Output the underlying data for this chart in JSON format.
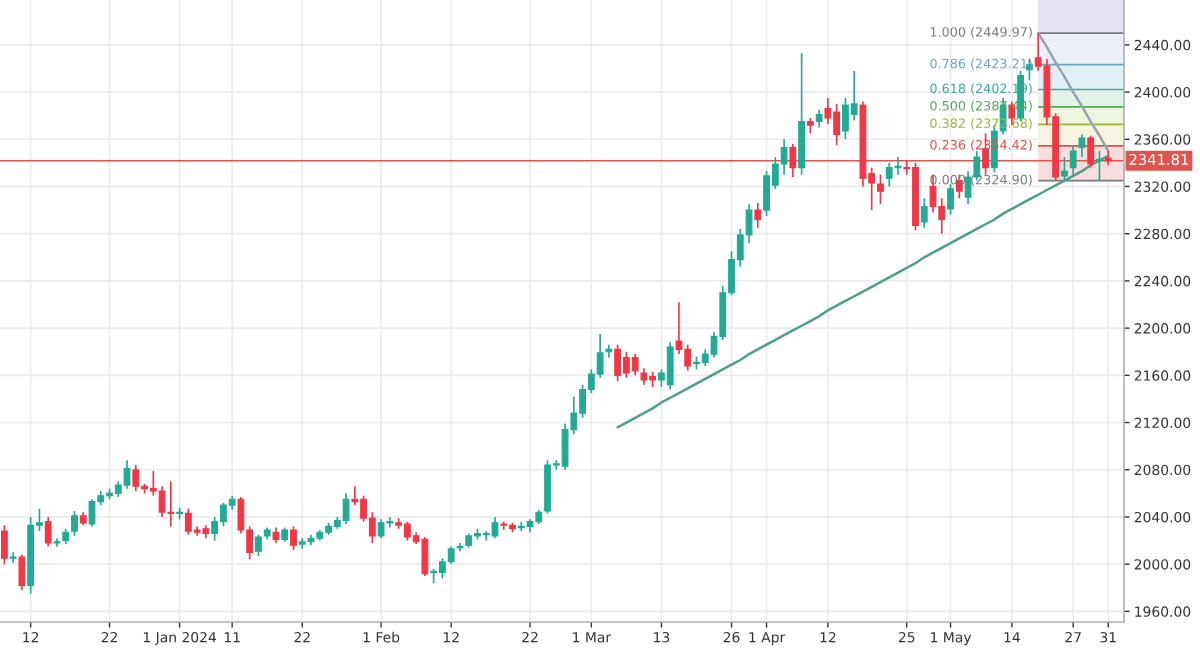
{
  "chart_data": {
    "type": "candlestick",
    "categories": [
      null,
      null,
      null,
      "12",
      null,
      null,
      null,
      null,
      null,
      null,
      null,
      null,
      "22",
      null,
      null,
      null,
      null,
      null,
      null,
      null,
      "1 Jan 2024",
      null,
      null,
      null,
      null,
      null,
      "11",
      null,
      null,
      null,
      null,
      null,
      null,
      null,
      "22",
      null,
      null,
      null,
      null,
      null,
      null,
      null,
      null,
      "1 Feb",
      null,
      null,
      null,
      null,
      null,
      null,
      null,
      "12",
      null,
      null,
      null,
      null,
      null,
      null,
      null,
      null,
      "22",
      null,
      null,
      null,
      null,
      null,
      null,
      "1 Mar",
      null,
      null,
      null,
      null,
      null,
      null,
      null,
      "13",
      null,
      null,
      null,
      null,
      null,
      null,
      null,
      "26",
      null,
      null,
      null,
      "1 Apr",
      null,
      null,
      null,
      null,
      null,
      null,
      "12",
      null,
      null,
      null,
      null,
      null,
      null,
      null,
      null,
      "25",
      null,
      null,
      null,
      null,
      "1 May",
      null,
      null,
      null,
      null,
      null,
      null,
      "14",
      null,
      null,
      null,
      null,
      null,
      null,
      "27",
      null,
      null,
      null,
      "31"
    ],
    "ohlc": [
      [
        2028,
        2033,
        2000,
        2005
      ],
      [
        2005,
        2010,
        2001,
        2006
      ],
      [
        2006,
        2008,
        1978,
        1982
      ],
      [
        1982,
        2040,
        1975,
        2033
      ],
      [
        2033,
        2047,
        2028,
        2035
      ],
      [
        2036,
        2040,
        2015,
        2018
      ],
      [
        2018,
        2022,
        2015,
        2019
      ],
      [
        2020,
        2030,
        2017,
        2027
      ],
      [
        2028,
        2045,
        2024,
        2041
      ],
      [
        2041,
        2044,
        2033,
        2035
      ],
      [
        2034,
        2055,
        2032,
        2053
      ],
      [
        2053,
        2062,
        2050,
        2058
      ],
      [
        2058,
        2064,
        2055,
        2060
      ],
      [
        2060,
        2070,
        2057,
        2067
      ],
      [
        2067,
        2088,
        2064,
        2081
      ],
      [
        2080,
        2084,
        2062,
        2066
      ],
      [
        2066,
        2068,
        2060,
        2064
      ],
      [
        2064,
        2079,
        2058,
        2062
      ],
      [
        2062,
        2066,
        2040,
        2044
      ],
      [
        2044,
        2070,
        2032,
        2043
      ],
      [
        2043,
        2048,
        2038,
        2044
      ],
      [
        2043,
        2047,
        2025,
        2028
      ],
      [
        2029,
        2032,
        2024,
        2027
      ],
      [
        2030,
        2033,
        2022,
        2026
      ],
      [
        2026,
        2040,
        2020,
        2036
      ],
      [
        2036,
        2052,
        2032,
        2050
      ],
      [
        2050,
        2058,
        2046,
        2055
      ],
      [
        2055,
        2057,
        2026,
        2029
      ],
      [
        2029,
        2032,
        2004,
        2010
      ],
      [
        2011,
        2025,
        2007,
        2023
      ],
      [
        2024,
        2031,
        2021,
        2029
      ],
      [
        2027,
        2031,
        2018,
        2021
      ],
      [
        2021,
        2031,
        2019,
        2029
      ],
      [
        2029,
        2032,
        2012,
        2016
      ],
      [
        2017,
        2022,
        2013,
        2019
      ],
      [
        2019,
        2025,
        2016,
        2022
      ],
      [
        2022,
        2029,
        2020,
        2027
      ],
      [
        2027,
        2035,
        2025,
        2032
      ],
      [
        2032,
        2040,
        2030,
        2037
      ],
      [
        2037,
        2060,
        2034,
        2055
      ],
      [
        2055,
        2066,
        2050,
        2053
      ],
      [
        2055,
        2058,
        2036,
        2039
      ],
      [
        2039,
        2044,
        2018,
        2024
      ],
      [
        2024,
        2038,
        2022,
        2035
      ],
      [
        2035,
        2040,
        2031,
        2036
      ],
      [
        2035,
        2039,
        2030,
        2033
      ],
      [
        2034,
        2036,
        2020,
        2023
      ],
      [
        2024,
        2027,
        2017,
        2019
      ],
      [
        2021,
        2023,
        1990,
        1992
      ],
      [
        1993,
        1996,
        1984,
        1994
      ],
      [
        1993,
        2005,
        1988,
        2002
      ],
      [
        2002,
        2015,
        2000,
        2013
      ],
      [
        2014,
        2018,
        2011,
        2015
      ],
      [
        2016,
        2026,
        2014,
        2024
      ],
      [
        2024,
        2030,
        2021,
        2026
      ],
      [
        2025,
        2028,
        2020,
        2026
      ],
      [
        2024,
        2040,
        2022,
        2035
      ],
      [
        2034,
        2036,
        2029,
        2033
      ],
      [
        2033,
        2035,
        2027,
        2030
      ],
      [
        2031,
        2036,
        2028,
        2032
      ],
      [
        2032,
        2038,
        2027,
        2036
      ],
      [
        2036,
        2046,
        2034,
        2044
      ],
      [
        2045,
        2088,
        2043,
        2084
      ],
      [
        2084,
        2088,
        2080,
        2085
      ],
      [
        2083,
        2119,
        2080,
        2114
      ],
      [
        2114,
        2142,
        2110,
        2128
      ],
      [
        2128,
        2152,
        2124,
        2148
      ],
      [
        2148,
        2165,
        2145,
        2161
      ],
      [
        2161,
        2195,
        2158,
        2179
      ],
      [
        2180,
        2186,
        2175,
        2182
      ],
      [
        2182,
        2186,
        2155,
        2160
      ],
      [
        2175,
        2180,
        2158,
        2162
      ],
      [
        2175,
        2178,
        2160,
        2164
      ],
      [
        2162,
        2166,
        2152,
        2156
      ],
      [
        2159,
        2163,
        2150,
        2156
      ],
      [
        2156,
        2165,
        2150,
        2162
      ],
      [
        2152,
        2188,
        2148,
        2184
      ],
      [
        2189,
        2222,
        2178,
        2182
      ],
      [
        2182,
        2186,
        2164,
        2168
      ],
      [
        2170,
        2176,
        2165,
        2171
      ],
      [
        2171,
        2182,
        2168,
        2178
      ],
      [
        2178,
        2197,
        2175,
        2193
      ],
      [
        2193,
        2236,
        2190,
        2230
      ],
      [
        2230,
        2265,
        2228,
        2258
      ],
      [
        2258,
        2284,
        2252,
        2279
      ],
      [
        2279,
        2305,
        2272,
        2300
      ],
      [
        2300,
        2306,
        2285,
        2292
      ],
      [
        2300,
        2333,
        2295,
        2329
      ],
      [
        2321,
        2345,
        2318,
        2339
      ],
      [
        2339,
        2360,
        2330,
        2353
      ],
      [
        2353,
        2356,
        2328,
        2336
      ],
      [
        2336,
        2433,
        2330,
        2375
      ],
      [
        2375,
        2378,
        2365,
        2372
      ],
      [
        2375,
        2385,
        2370,
        2381
      ],
      [
        2386,
        2395,
        2373,
        2378
      ],
      [
        2383,
        2390,
        2355,
        2364
      ],
      [
        2367,
        2395,
        2360,
        2389
      ],
      [
        2381,
        2418,
        2376,
        2390
      ],
      [
        2389,
        2392,
        2320,
        2327
      ],
      [
        2331,
        2336,
        2300,
        2323
      ],
      [
        2322,
        2330,
        2305,
        2316
      ],
      [
        2327,
        2340,
        2320,
        2336
      ],
      [
        2336,
        2345,
        2330,
        2337
      ],
      [
        2336,
        2342,
        2330,
        2335
      ],
      [
        2336,
        2340,
        2283,
        2287
      ],
      [
        2290,
        2310,
        2285,
        2303
      ],
      [
        2320,
        2330,
        2298,
        2303
      ],
      [
        2303,
        2310,
        2280,
        2292
      ],
      [
        2301,
        2322,
        2296,
        2318
      ],
      [
        2325,
        2330,
        2310,
        2316
      ],
      [
        2311,
        2333,
        2305,
        2328
      ],
      [
        2328,
        2350,
        2325,
        2345
      ],
      [
        2352,
        2365,
        2330,
        2336
      ],
      [
        2336,
        2372,
        2332,
        2367
      ],
      [
        2367,
        2395,
        2364,
        2389
      ],
      [
        2389,
        2392,
        2372,
        2378
      ],
      [
        2378,
        2418,
        2375,
        2414
      ],
      [
        2419,
        2428,
        2410,
        2423
      ],
      [
        2429,
        2449.97,
        2418,
        2422
      ],
      [
        2422,
        2428,
        2372,
        2379
      ],
      [
        2379,
        2382,
        2325,
        2328
      ],
      [
        2329,
        2345,
        2325,
        2333
      ],
      [
        2336,
        2355,
        2330,
        2350
      ],
      [
        2353,
        2364,
        2345,
        2361
      ],
      [
        2361,
        2363,
        2336,
        2339
      ],
      [
        2342,
        2350,
        2325,
        2343
      ],
      [
        2344,
        2350,
        2338,
        2341.81
      ]
    ],
    "colors": [
      "#f23645",
      "#22ab94",
      "#f23645",
      "#22ab94",
      "#22ab94",
      "#f23645",
      "#22ab94",
      "#22ab94",
      "#22ab94",
      "#f23645",
      "#22ab94",
      "#22ab94",
      "#22ab94",
      "#22ab94",
      "#22ab94",
      "#f23645",
      "#f23645",
      "#f23645",
      "#f23645",
      "#f23645",
      "#22ab94",
      "#f23645",
      "#f23645",
      "#f23645",
      "#22ab94",
      "#22ab94",
      "#22ab94",
      "#f23645",
      "#f23645",
      "#22ab94",
      "#22ab94",
      "#f23645",
      "#22ab94",
      "#f23645",
      "#22ab94",
      "#22ab94",
      "#22ab94",
      "#22ab94",
      "#22ab94",
      "#22ab94",
      "#f23645",
      "#f23645",
      "#f23645",
      "#22ab94",
      "#22ab94",
      "#f23645",
      "#f23645",
      "#f23645",
      "#f23645",
      "#22ab94",
      "#22ab94",
      "#22ab94",
      "#22ab94",
      "#22ab94",
      "#22ab94",
      "#22ab94",
      "#22ab94",
      "#f23645",
      "#f23645",
      "#22ab94",
      "#22ab94",
      "#22ab94",
      "#22ab94",
      "#22ab94",
      "#22ab94",
      "#22ab94",
      "#22ab94",
      "#22ab94",
      "#22ab94",
      "#22ab94",
      "#f23645",
      "#f23645",
      "#f23645",
      "#f23645",
      "#f23645",
      "#22ab94",
      "#22ab94",
      "#f23645",
      "#f23645",
      "#22ab94",
      "#22ab94",
      "#22ab94",
      "#22ab94",
      "#22ab94",
      "#22ab94",
      "#22ab94",
      "#f23645",
      "#22ab94",
      "#22ab94",
      "#22ab94",
      "#f23645",
      "#22ab94",
      "#f23645",
      "#22ab94",
      "#f23645",
      "#f23645",
      "#22ab94",
      "#22ab94",
      "#f23645",
      "#f23645",
      "#f23645",
      "#22ab94",
      "#22ab94",
      "#f23645",
      "#f23645",
      "#22ab94",
      "#f23645",
      "#f23645",
      "#22ab94",
      "#f23645",
      "#22ab94",
      "#22ab94",
      "#f23645",
      "#22ab94",
      "#22ab94",
      "#f23645",
      "#22ab94",
      "#22ab94",
      "#f23645",
      "#f23645",
      "#f23645",
      "#22ab94",
      "#22ab94",
      "#22ab94",
      "#f23645",
      "#22ab94",
      "#f23645"
    ],
    "series": [
      {
        "type": "line",
        "color": "#4f9e8e",
        "values": [
          null,
          null,
          null,
          null,
          null,
          null,
          null,
          null,
          null,
          null,
          null,
          null,
          null,
          null,
          null,
          null,
          null,
          null,
          null,
          null,
          null,
          null,
          null,
          null,
          null,
          null,
          null,
          null,
          null,
          null,
          null,
          null,
          null,
          null,
          null,
          null,
          null,
          null,
          null,
          null,
          null,
          null,
          null,
          null,
          null,
          null,
          null,
          null,
          null,
          null,
          null,
          null,
          null,
          null,
          null,
          null,
          null,
          null,
          null,
          null,
          null,
          null,
          null,
          null,
          null,
          null,
          null,
          null,
          null,
          null,
          2116,
          2120,
          2124,
          2128,
          2132,
          2137,
          2141,
          2145,
          2149,
          2153,
          2157,
          2161,
          2165,
          2169,
          2173,
          2178,
          2182,
          2186,
          2190,
          2194,
          2198,
          2202,
          2206,
          2210,
          2215,
          2219,
          2223,
          2227,
          2231,
          2235,
          2239,
          2243,
          2247,
          2251,
          2255,
          2260,
          2264,
          2268,
          2272,
          2276,
          2280,
          2284,
          2288,
          2292,
          2297,
          2301,
          2305,
          2309,
          2313,
          2317,
          2321,
          2325,
          2329,
          2333,
          2338,
          2342,
          2346
        ]
      },
      {
        "type": "line",
        "color": "#9aa0b0",
        "values": [
          null,
          null,
          null,
          null,
          null,
          null,
          null,
          null,
          null,
          null,
          null,
          null,
          null,
          null,
          null,
          null,
          null,
          null,
          null,
          null,
          null,
          null,
          null,
          null,
          null,
          null,
          null,
          null,
          null,
          null,
          null,
          null,
          null,
          null,
          null,
          null,
          null,
          null,
          null,
          null,
          null,
          null,
          null,
          null,
          null,
          null,
          null,
          null,
          null,
          null,
          null,
          null,
          null,
          null,
          null,
          null,
          null,
          null,
          null,
          null,
          null,
          null,
          null,
          null,
          null,
          null,
          null,
          null,
          null,
          null,
          null,
          null,
          null,
          null,
          null,
          null,
          null,
          null,
          null,
          null,
          null,
          null,
          null,
          null,
          null,
          null,
          null,
          null,
          null,
          null,
          null,
          null,
          null,
          null,
          null,
          null,
          null,
          null,
          null,
          null,
          null,
          null,
          null,
          null,
          null,
          null,
          null,
          null,
          null,
          null,
          null,
          null,
          null,
          null,
          null,
          null,
          null,
          null,
          2450,
          2438,
          2425,
          2413,
          2400,
          2388,
          2375,
          2363,
          2350
        ]
      }
    ],
    "ref_lines": [
      {
        "axis": "y",
        "value": 2341.81,
        "label": "2341.81",
        "color": "#e0544f"
      },
      {
        "axis": "y",
        "value": 2449.97,
        "label": "1.000 (2449.97)",
        "color": "#787b86"
      },
      {
        "axis": "y",
        "value": 2423.21,
        "label": "0.786 (2423.21)",
        "color": "#64a7c6"
      },
      {
        "axis": "y",
        "value": 2402.19,
        "label": "0.618 (2402.19)",
        "color": "#3fa89a"
      },
      {
        "axis": "y",
        "value": 2387.44,
        "label": "0.500 (2387.44)",
        "color": "#4caf50"
      },
      {
        "axis": "y",
        "value": 2372.68,
        "label": "0.382 (2372.68)",
        "color": "#9bb53a"
      },
      {
        "axis": "y",
        "value": 2354.42,
        "label": "0.236 (2354.42)",
        "color": "#e05050"
      },
      {
        "axis": "y",
        "value": 2324.9,
        "label": "0.000 (2324.90)",
        "color": "#787b86"
      }
    ],
    "bands": [
      {
        "axis": "y",
        "from": 2449.97,
        "to": 2478,
        "color": "#e4e3f6"
      },
      {
        "axis": "y",
        "from": 2423.21,
        "to": 2449.97,
        "color": "#eceff5"
      },
      {
        "axis": "y",
        "from": 2402.19,
        "to": 2423.21,
        "color": "#e1f0f5"
      },
      {
        "axis": "y",
        "from": 2387.44,
        "to": 2402.19,
        "color": "#e2f2ea"
      },
      {
        "axis": "y",
        "from": 2372.68,
        "to": 2387.44,
        "color": "#edf5df"
      },
      {
        "axis": "y",
        "from": 2354.42,
        "to": 2372.68,
        "color": "#f6f4e0"
      },
      {
        "axis": "y",
        "from": 2324.9,
        "to": 2354.42,
        "color": "#fadede"
      }
    ],
    "ylim": [
      1951,
      2478
    ],
    "yticks": [
      {
        "value": 1960,
        "label": "1960.00"
      },
      {
        "value": 2000,
        "label": "2000.00"
      },
      {
        "value": 2040,
        "label": "2040.00"
      },
      {
        "value": 2080,
        "label": "2080.00"
      },
      {
        "value": 2120,
        "label": "2120.00"
      },
      {
        "value": 2160,
        "label": "2160.00"
      },
      {
        "value": 2200,
        "label": "2200.00"
      },
      {
        "value": 2240,
        "label": "2240.00"
      },
      {
        "value": 2280,
        "label": "2280.00"
      },
      {
        "value": 2320,
        "label": "2320.00"
      },
      {
        "value": 2360,
        "label": "2360.00"
      },
      {
        "value": 2400,
        "label": "2400.00"
      },
      {
        "value": 2440,
        "label": "2440.00"
      }
    ],
    "grid": true
  }
}
